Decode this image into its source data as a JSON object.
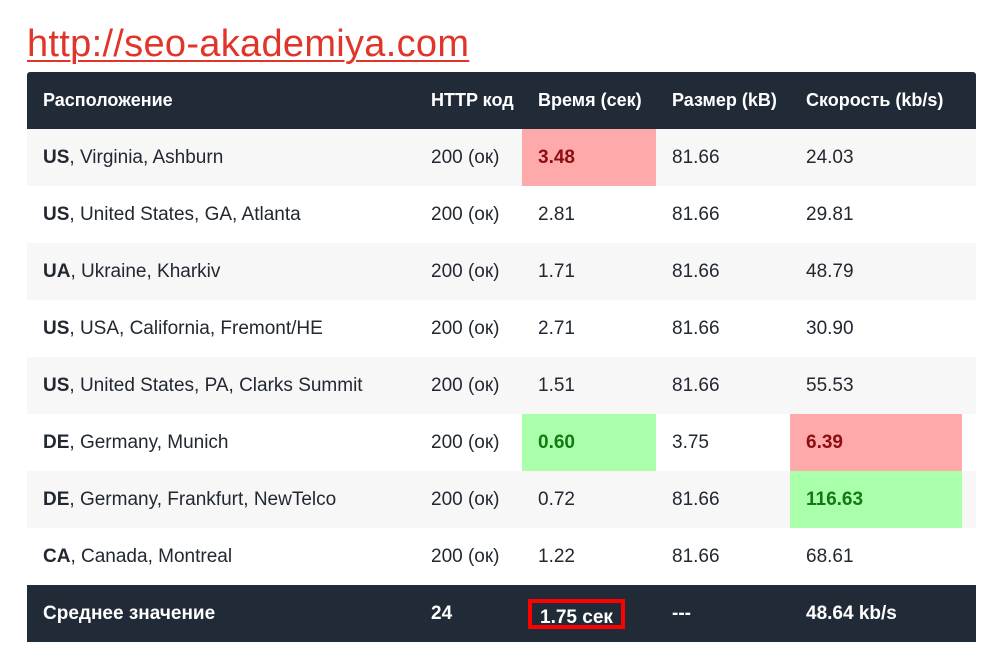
{
  "site_link": "http://seo-akademiya.com",
  "table": {
    "headers": {
      "location": "Расположение",
      "http": "HTTP код",
      "time": "Время (сек)",
      "size": "Размер (kB)",
      "speed": "Скорость (kb/s)"
    },
    "rows": [
      {
        "code": "US",
        "place": ", Virginia, Ashburn",
        "http": "200 (ок)",
        "time": "3.48",
        "size": "81.66",
        "speed": "24.03",
        "time_status": "bad",
        "speed_status": "normal"
      },
      {
        "code": "US",
        "place": ", United States, GA, Atlanta",
        "http": "200 (ок)",
        "time": "2.81",
        "size": "81.66",
        "speed": "29.81",
        "time_status": "normal",
        "speed_status": "normal"
      },
      {
        "code": "UA",
        "place": ", Ukraine, Kharkiv",
        "http": "200 (ок)",
        "time": "1.71",
        "size": "81.66",
        "speed": "48.79",
        "time_status": "normal",
        "speed_status": "normal"
      },
      {
        "code": "US",
        "place": ", USA, California, Fremont/HE",
        "http": "200 (ок)",
        "time": "2.71",
        "size": "81.66",
        "speed": "30.90",
        "time_status": "normal",
        "speed_status": "normal"
      },
      {
        "code": "US",
        "place": ", United States, PA, Clarks Summit",
        "http": "200 (ок)",
        "time": "1.51",
        "size": "81.66",
        "speed": "55.53",
        "time_status": "normal",
        "speed_status": "normal"
      },
      {
        "code": "DE",
        "place": ", Germany, Munich",
        "http": "200 (ок)",
        "time": "0.60",
        "size": "3.75",
        "speed": "6.39",
        "time_status": "good",
        "speed_status": "bad"
      },
      {
        "code": "DE",
        "place": ", Germany, Frankfurt, NewTelco",
        "http": "200 (ок)",
        "time": "0.72",
        "size": "81.66",
        "speed": "116.63",
        "time_status": "normal",
        "speed_status": "good"
      },
      {
        "code": "CA",
        "place": ", Canada, Montreal",
        "http": "200 (ок)",
        "time": "1.22",
        "size": "81.66",
        "speed": "68.61",
        "time_status": "normal",
        "speed_status": "normal"
      }
    ],
    "footer": {
      "label": "Среднее значение",
      "http": "24",
      "time": "1.75 сек",
      "size": "---",
      "speed": "48.64 kb/s"
    }
  },
  "colors": {
    "header_bg": "#212b38",
    "bad_bg": "#ffaaaa",
    "good_bg": "#aaffaa",
    "link": "#e0352b",
    "highlight_border": "#ff0000"
  }
}
